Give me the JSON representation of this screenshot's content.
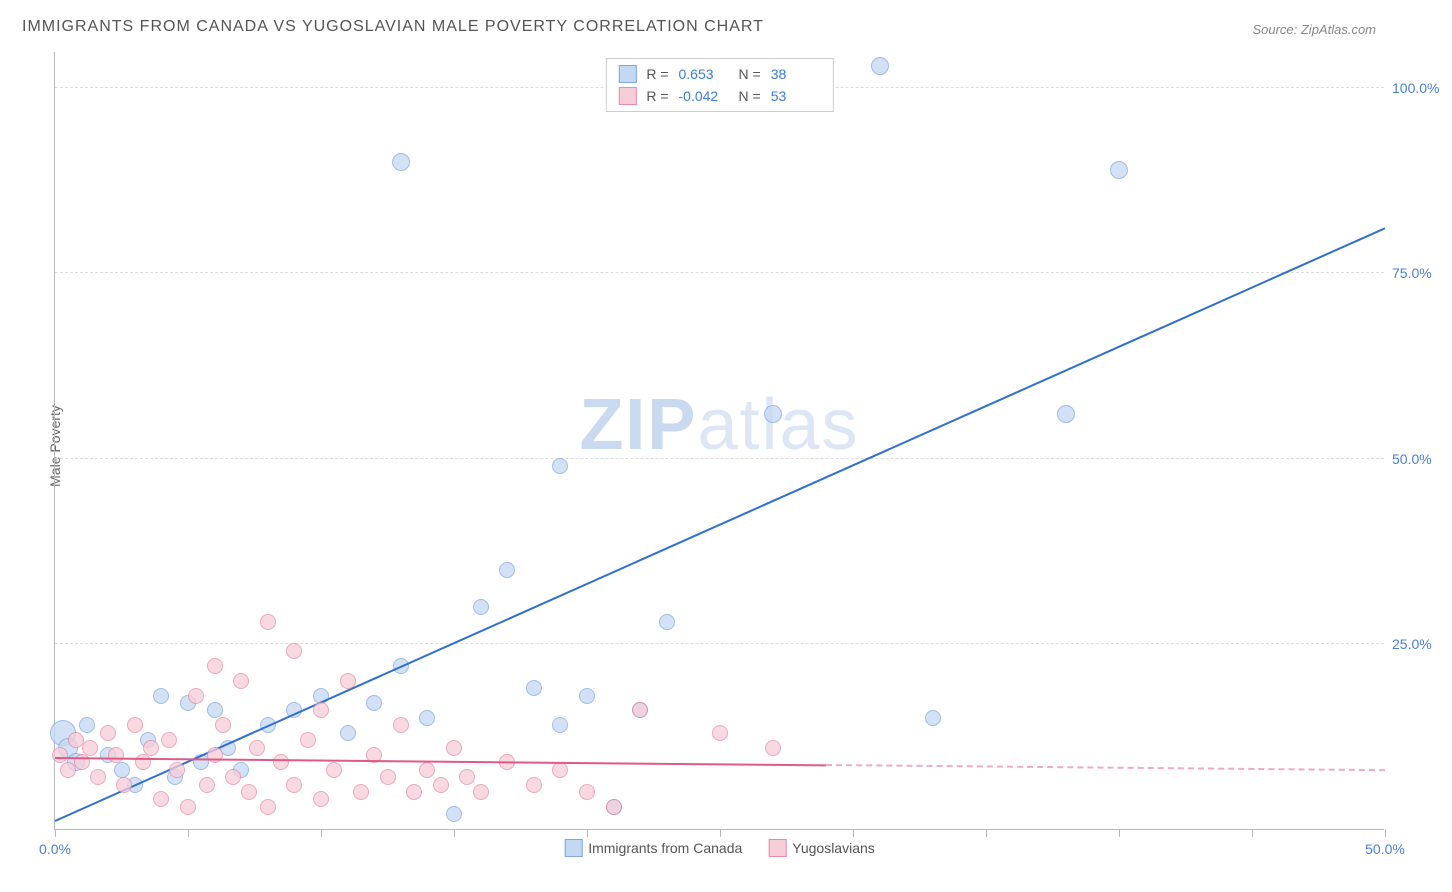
{
  "title": "IMMIGRANTS FROM CANADA VS YUGOSLAVIAN MALE POVERTY CORRELATION CHART",
  "source": "Source: ZipAtlas.com",
  "y_axis_label": "Male Poverty",
  "watermark": {
    "bold": "ZIP",
    "rest": "atlas"
  },
  "chart": {
    "type": "scatter",
    "xlim": [
      0,
      50
    ],
    "ylim": [
      0,
      105
    ],
    "x_ticks": [
      0,
      5,
      10,
      15,
      20,
      25,
      30,
      35,
      40,
      45,
      50
    ],
    "x_tick_labels": {
      "0": "0.0%",
      "50": "50.0%"
    },
    "y_gridlines": [
      25,
      50,
      75,
      100
    ],
    "y_tick_labels": {
      "25": "25.0%",
      "50": "50.0%",
      "75": "75.0%",
      "100": "100.0%"
    },
    "background_color": "#ffffff",
    "grid_color": "#dddddd",
    "axis_color": "#bbbbbb",
    "tick_label_color": "#4a7fd6",
    "title_fontsize": 16,
    "label_fontsize": 14
  },
  "series": [
    {
      "name": "Immigrants from Canada",
      "color_fill": "#c3d8f3",
      "color_stroke": "#7fa8e0",
      "R": "0.653",
      "N": "38",
      "trend": {
        "x1": 0,
        "y1": 1,
        "x2": 50,
        "y2": 81,
        "color": "#2f6fd0",
        "dash": false
      },
      "marker_r_base": 8,
      "points": [
        {
          "x": 0.3,
          "y": 13,
          "r": 13
        },
        {
          "x": 0.5,
          "y": 11,
          "r": 10
        },
        {
          "x": 0.8,
          "y": 9,
          "r": 9
        },
        {
          "x": 1.2,
          "y": 14,
          "r": 8
        },
        {
          "x": 2,
          "y": 10,
          "r": 8
        },
        {
          "x": 2.5,
          "y": 8,
          "r": 8
        },
        {
          "x": 3,
          "y": 6,
          "r": 8
        },
        {
          "x": 3.5,
          "y": 12,
          "r": 8
        },
        {
          "x": 4,
          "y": 18,
          "r": 8
        },
        {
          "x": 4.5,
          "y": 7,
          "r": 8
        },
        {
          "x": 5,
          "y": 17,
          "r": 8
        },
        {
          "x": 5.5,
          "y": 9,
          "r": 8
        },
        {
          "x": 6,
          "y": 16,
          "r": 8
        },
        {
          "x": 6.5,
          "y": 11,
          "r": 8
        },
        {
          "x": 7,
          "y": 8,
          "r": 8
        },
        {
          "x": 8,
          "y": 14,
          "r": 8
        },
        {
          "x": 9,
          "y": 16,
          "r": 8
        },
        {
          "x": 10,
          "y": 18,
          "r": 8
        },
        {
          "x": 11,
          "y": 13,
          "r": 8
        },
        {
          "x": 12,
          "y": 17,
          "r": 8
        },
        {
          "x": 13,
          "y": 22,
          "r": 8
        },
        {
          "x": 13,
          "y": 90,
          "r": 9
        },
        {
          "x": 14,
          "y": 15,
          "r": 8
        },
        {
          "x": 15,
          "y": 2,
          "r": 8
        },
        {
          "x": 16,
          "y": 30,
          "r": 8
        },
        {
          "x": 17,
          "y": 35,
          "r": 8
        },
        {
          "x": 18,
          "y": 19,
          "r": 8
        },
        {
          "x": 19,
          "y": 49,
          "r": 8
        },
        {
          "x": 19,
          "y": 14,
          "r": 8
        },
        {
          "x": 20,
          "y": 18,
          "r": 8
        },
        {
          "x": 21,
          "y": 3,
          "r": 8
        },
        {
          "x": 22,
          "y": 16,
          "r": 8
        },
        {
          "x": 23,
          "y": 28,
          "r": 8
        },
        {
          "x": 27,
          "y": 56,
          "r": 9
        },
        {
          "x": 31,
          "y": 103,
          "r": 9
        },
        {
          "x": 33,
          "y": 15,
          "r": 8
        },
        {
          "x": 38,
          "y": 56,
          "r": 9
        },
        {
          "x": 40,
          "y": 89,
          "r": 9
        }
      ]
    },
    {
      "name": "Yugoslavians",
      "color_fill": "#f6cdd8",
      "color_stroke": "#e88aa5",
      "R": "-0.042",
      "N": "53",
      "trend": {
        "x1": 0,
        "y1": 9.5,
        "x2": 29,
        "y2": 8.5,
        "color": "#e05a85",
        "dash": false,
        "ext_x2": 50,
        "ext_y2": 7.8
      },
      "marker_r_base": 8,
      "points": [
        {
          "x": 0.2,
          "y": 10,
          "r": 8
        },
        {
          "x": 0.5,
          "y": 8,
          "r": 8
        },
        {
          "x": 0.8,
          "y": 12,
          "r": 8
        },
        {
          "x": 1,
          "y": 9,
          "r": 8
        },
        {
          "x": 1.3,
          "y": 11,
          "r": 8
        },
        {
          "x": 1.6,
          "y": 7,
          "r": 8
        },
        {
          "x": 2,
          "y": 13,
          "r": 8
        },
        {
          "x": 2.3,
          "y": 10,
          "r": 8
        },
        {
          "x": 2.6,
          "y": 6,
          "r": 8
        },
        {
          "x": 3,
          "y": 14,
          "r": 8
        },
        {
          "x": 3.3,
          "y": 9,
          "r": 8
        },
        {
          "x": 3.6,
          "y": 11,
          "r": 8
        },
        {
          "x": 4,
          "y": 4,
          "r": 8
        },
        {
          "x": 4.3,
          "y": 12,
          "r": 8
        },
        {
          "x": 4.6,
          "y": 8,
          "r": 8
        },
        {
          "x": 5,
          "y": 3,
          "r": 8
        },
        {
          "x": 5.3,
          "y": 18,
          "r": 8
        },
        {
          "x": 5.7,
          "y": 6,
          "r": 8
        },
        {
          "x": 6,
          "y": 22,
          "r": 8
        },
        {
          "x": 6,
          "y": 10,
          "r": 8
        },
        {
          "x": 6.3,
          "y": 14,
          "r": 8
        },
        {
          "x": 6.7,
          "y": 7,
          "r": 8
        },
        {
          "x": 7,
          "y": 20,
          "r": 8
        },
        {
          "x": 7.3,
          "y": 5,
          "r": 8
        },
        {
          "x": 7.6,
          "y": 11,
          "r": 8
        },
        {
          "x": 8,
          "y": 3,
          "r": 8
        },
        {
          "x": 8,
          "y": 28,
          "r": 8
        },
        {
          "x": 8.5,
          "y": 9,
          "r": 8
        },
        {
          "x": 9,
          "y": 24,
          "r": 8
        },
        {
          "x": 9,
          "y": 6,
          "r": 8
        },
        {
          "x": 9.5,
          "y": 12,
          "r": 8
        },
        {
          "x": 10,
          "y": 4,
          "r": 8
        },
        {
          "x": 10,
          "y": 16,
          "r": 8
        },
        {
          "x": 10.5,
          "y": 8,
          "r": 8
        },
        {
          "x": 11,
          "y": 20,
          "r": 8
        },
        {
          "x": 11.5,
          "y": 5,
          "r": 8
        },
        {
          "x": 12,
          "y": 10,
          "r": 8
        },
        {
          "x": 12.5,
          "y": 7,
          "r": 8
        },
        {
          "x": 13,
          "y": 14,
          "r": 8
        },
        {
          "x": 13.5,
          "y": 5,
          "r": 8
        },
        {
          "x": 14,
          "y": 8,
          "r": 8
        },
        {
          "x": 14.5,
          "y": 6,
          "r": 8
        },
        {
          "x": 15,
          "y": 11,
          "r": 8
        },
        {
          "x": 15.5,
          "y": 7,
          "r": 8
        },
        {
          "x": 16,
          "y": 5,
          "r": 8
        },
        {
          "x": 17,
          "y": 9,
          "r": 8
        },
        {
          "x": 18,
          "y": 6,
          "r": 8
        },
        {
          "x": 19,
          "y": 8,
          "r": 8
        },
        {
          "x": 20,
          "y": 5,
          "r": 8
        },
        {
          "x": 21,
          "y": 3,
          "r": 8
        },
        {
          "x": 22,
          "y": 16,
          "r": 8
        },
        {
          "x": 25,
          "y": 13,
          "r": 8
        },
        {
          "x": 27,
          "y": 11,
          "r": 8
        }
      ]
    }
  ],
  "legend_bottom": [
    {
      "label": "Immigrants from Canada",
      "fill": "#c3d8f3",
      "stroke": "#7fa8e0"
    },
    {
      "label": "Yugoslavians",
      "fill": "#f6cdd8",
      "stroke": "#e88aa5"
    }
  ]
}
